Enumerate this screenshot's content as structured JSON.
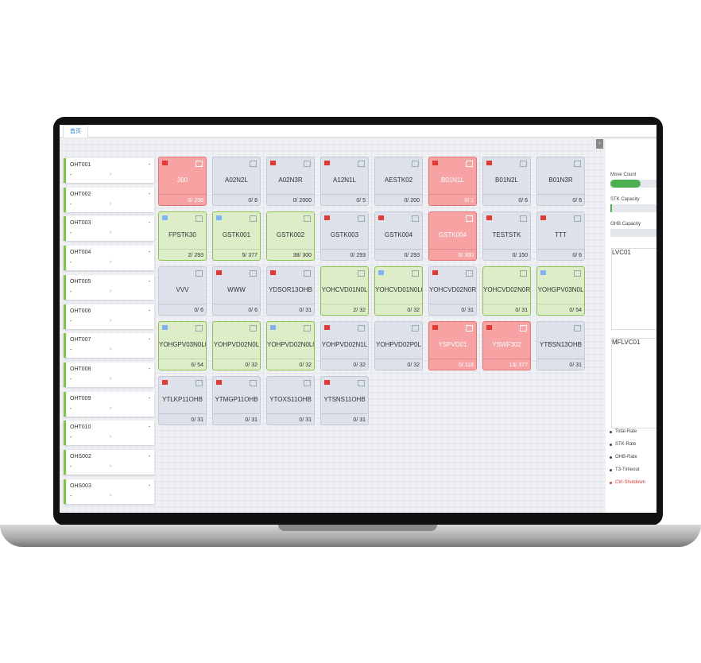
{
  "tab": "首页",
  "vehicles": [
    {
      "name": "OHT001",
      "status": "-",
      "value": "-"
    },
    {
      "name": "OHT002",
      "status": "-",
      "value": "-"
    },
    {
      "name": "OHT003",
      "status": "-",
      "value": "-"
    },
    {
      "name": "OHT004",
      "status": "-",
      "value": "-"
    },
    {
      "name": "OHT005",
      "status": "-",
      "value": "-"
    },
    {
      "name": "OHT006",
      "status": "-",
      "value": "-"
    },
    {
      "name": "OHT007",
      "status": "-",
      "value": "-"
    },
    {
      "name": "OHT008",
      "status": "-",
      "value": "-"
    },
    {
      "name": "OHT009",
      "status": "-",
      "value": "-"
    },
    {
      "name": "OHT010",
      "status": "-",
      "value": "-"
    },
    {
      "name": "OHS002",
      "status": "-",
      "value": "-"
    },
    {
      "name": "OHS003",
      "status": "-",
      "value": "-"
    }
  ],
  "stockers": [
    {
      "name": "300",
      "count": "0/ 298",
      "state": "red"
    },
    {
      "name": "A02N2L",
      "count": "0/ 8",
      "state": "gray"
    },
    {
      "name": "A02N3R",
      "count": "0/ 2000",
      "state": "gray"
    },
    {
      "name": "A12N1L",
      "count": "0/ 5",
      "state": "gray"
    },
    {
      "name": "AESTK02",
      "count": "0/ 200",
      "state": "gray"
    },
    {
      "name": "B01N1L",
      "count": "0/ 1",
      "state": "red"
    },
    {
      "name": "B01N2L",
      "count": "0/ 6",
      "state": "gray"
    },
    {
      "name": "B01N3R",
      "count": "0/ 6",
      "state": "gray"
    },
    {
      "name": "FPSTK30",
      "count": "2/ 293",
      "state": "green"
    },
    {
      "name": "GSTK001",
      "count": "5/ 377",
      "state": "green"
    },
    {
      "name": "GSTK002",
      "count": "38/ 300",
      "state": "green"
    },
    {
      "name": "GSTK003",
      "count": "0/ 293",
      "state": "gray"
    },
    {
      "name": "GSTK004",
      "count": "0/ 293",
      "state": "gray"
    },
    {
      "name": "GSTK004",
      "count": "0/ 300",
      "state": "red"
    },
    {
      "name": "TESTSTK",
      "count": "0/ 150",
      "state": "gray"
    },
    {
      "name": "TTT",
      "count": "0/ 6",
      "state": "gray"
    },
    {
      "name": "VVV",
      "count": "0/ 6",
      "state": "gray"
    },
    {
      "name": "WWW",
      "count": "0/ 6",
      "state": "gray"
    },
    {
      "name": "YDSOR13OHB",
      "count": "0/ 31",
      "state": "gray"
    },
    {
      "name": "YOHCVD01N0L",
      "count": "2/ 32",
      "state": "green"
    },
    {
      "name": "YOHCVD01N0L00",
      "count": "0/ 32",
      "state": "green"
    },
    {
      "name": "YOHCVD02N0R",
      "count": "0/ 31",
      "state": "gray"
    },
    {
      "name": "YOHCVD02N0R00",
      "count": "0/ 31",
      "state": "green"
    },
    {
      "name": "YOHGPV03N0L",
      "count": "0/ 54",
      "state": "green"
    },
    {
      "name": "YOHGPV03N0L00",
      "count": "6/ 54",
      "state": "green"
    },
    {
      "name": "YOHPVD02N0L",
      "count": "0/ 32",
      "state": "green"
    },
    {
      "name": "YOHPVD02N0L00",
      "count": "0/ 32",
      "state": "green"
    },
    {
      "name": "YOHPVD02N1L",
      "count": "0/ 32",
      "state": "gray"
    },
    {
      "name": "YOHPVD02P0L",
      "count": "0/ 32",
      "state": "gray"
    },
    {
      "name": "YSPVD01",
      "count": "0/ 116",
      "state": "red"
    },
    {
      "name": "YSWF302",
      "count": "13/ 377",
      "state": "red"
    },
    {
      "name": "YTBSN13OHB",
      "count": "0/ 31",
      "state": "gray"
    },
    {
      "name": "YTLKP11OHB",
      "count": "0/ 31",
      "state": "gray"
    },
    {
      "name": "YTMGP11OHB",
      "count": "0/ 31",
      "state": "gray"
    },
    {
      "name": "YTOXS11OHB",
      "count": "0/ 31",
      "state": "gray"
    },
    {
      "name": "YTSNS11OHB",
      "count": "0/ 31",
      "state": "gray"
    }
  ],
  "side": {
    "metrics": [
      "Move Count",
      "STK Capacity",
      "OHB Capacity"
    ],
    "panels": [
      "LVC01",
      "MFLVC01"
    ],
    "legend": [
      "Total-Rate",
      "STK-Rate",
      "OHB-Rate",
      "T3-Timeout",
      "Ctrl-Shutdown"
    ]
  }
}
